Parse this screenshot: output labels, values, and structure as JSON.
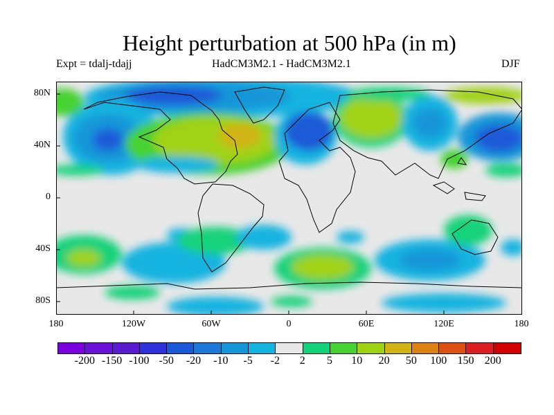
{
  "title": "Height perturbation at 500 hPa (in m)",
  "left_subtitle": "Expt = tdalj-tdajj",
  "center_subtitle": "HadCM3M2.1 - HadCM3M2.1",
  "right_subtitle": "DJF",
  "y_ticks": [
    "80N",
    "40N",
    "0",
    "40S",
    "80S"
  ],
  "x_ticks": [
    "180",
    "120W",
    "60W",
    "0",
    "60E",
    "120E",
    "180"
  ],
  "colorbar_labels": [
    "-200",
    "-150",
    "-100",
    "-50",
    "-20",
    "-10",
    "-5",
    "-2",
    "2",
    "5",
    "10",
    "20",
    "50",
    "100",
    "150",
    "200"
  ],
  "colorbar_colors": [
    "#7a00e0",
    "#6a10d8",
    "#5a1ad0",
    "#2f32d8",
    "#1a5ad8",
    "#1e78d8",
    "#1496d8",
    "#14b4e0",
    "#e8e8e8",
    "#14d27a",
    "#46d232",
    "#a0d214",
    "#d2b414",
    "#dc8214",
    "#dc5014",
    "#dc1e1e",
    "#d20000"
  ],
  "palette": {
    "background": "#e8e8e8",
    "coast": "#000000"
  }
}
